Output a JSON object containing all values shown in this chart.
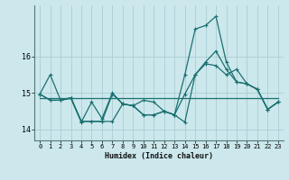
{
  "xlabel": "Humidex (Indice chaleur)",
  "background_color": "#cce8ec",
  "grid_color": "#aacdd4",
  "line_color": "#1a7070",
  "xlim": [
    -0.5,
    23.5
  ],
  "ylim": [
    13.7,
    17.4
  ],
  "yticks": [
    14,
    15,
    16
  ],
  "xticks": [
    0,
    1,
    2,
    3,
    4,
    5,
    6,
    7,
    8,
    9,
    10,
    11,
    12,
    13,
    14,
    15,
    16,
    17,
    18,
    19,
    20,
    21,
    22,
    23
  ],
  "series1_x": [
    0,
    1,
    2,
    3,
    4,
    5,
    6,
    7,
    8,
    9,
    10,
    11,
    12,
    13,
    14,
    15,
    16,
    17,
    18,
    19,
    20,
    21,
    22,
    23
  ],
  "series1_y": [
    14.97,
    15.5,
    14.8,
    14.85,
    14.2,
    14.75,
    14.3,
    15.0,
    14.7,
    14.65,
    14.8,
    14.75,
    14.5,
    14.4,
    14.2,
    15.5,
    15.8,
    15.75,
    15.5,
    15.65,
    15.25,
    15.1,
    14.55,
    14.75
  ],
  "series2_x": [
    0,
    23
  ],
  "series2_y": [
    14.85,
    14.85
  ],
  "series3_x": [
    0,
    1,
    2,
    3,
    4,
    5,
    6,
    7,
    8,
    9,
    10,
    11,
    12,
    13,
    14,
    15,
    16,
    17,
    18,
    19,
    20,
    21,
    22,
    23
  ],
  "series3_y": [
    14.97,
    14.8,
    14.8,
    14.87,
    14.22,
    14.22,
    14.22,
    14.97,
    14.7,
    14.65,
    14.4,
    14.4,
    14.5,
    14.4,
    15.5,
    16.75,
    16.85,
    17.1,
    15.85,
    15.3,
    15.25,
    15.1,
    14.55,
    14.75
  ],
  "series4_x": [
    0,
    1,
    2,
    3,
    4,
    5,
    6,
    7,
    8,
    9,
    10,
    11,
    12,
    13,
    14,
    15,
    16,
    17,
    18,
    19,
    20,
    21,
    22,
    23
  ],
  "series4_y": [
    14.97,
    14.8,
    14.8,
    14.87,
    14.22,
    14.22,
    14.22,
    14.22,
    14.7,
    14.65,
    14.4,
    14.4,
    14.5,
    14.4,
    14.97,
    15.5,
    15.85,
    16.15,
    15.65,
    15.3,
    15.25,
    15.1,
    14.55,
    14.75
  ]
}
